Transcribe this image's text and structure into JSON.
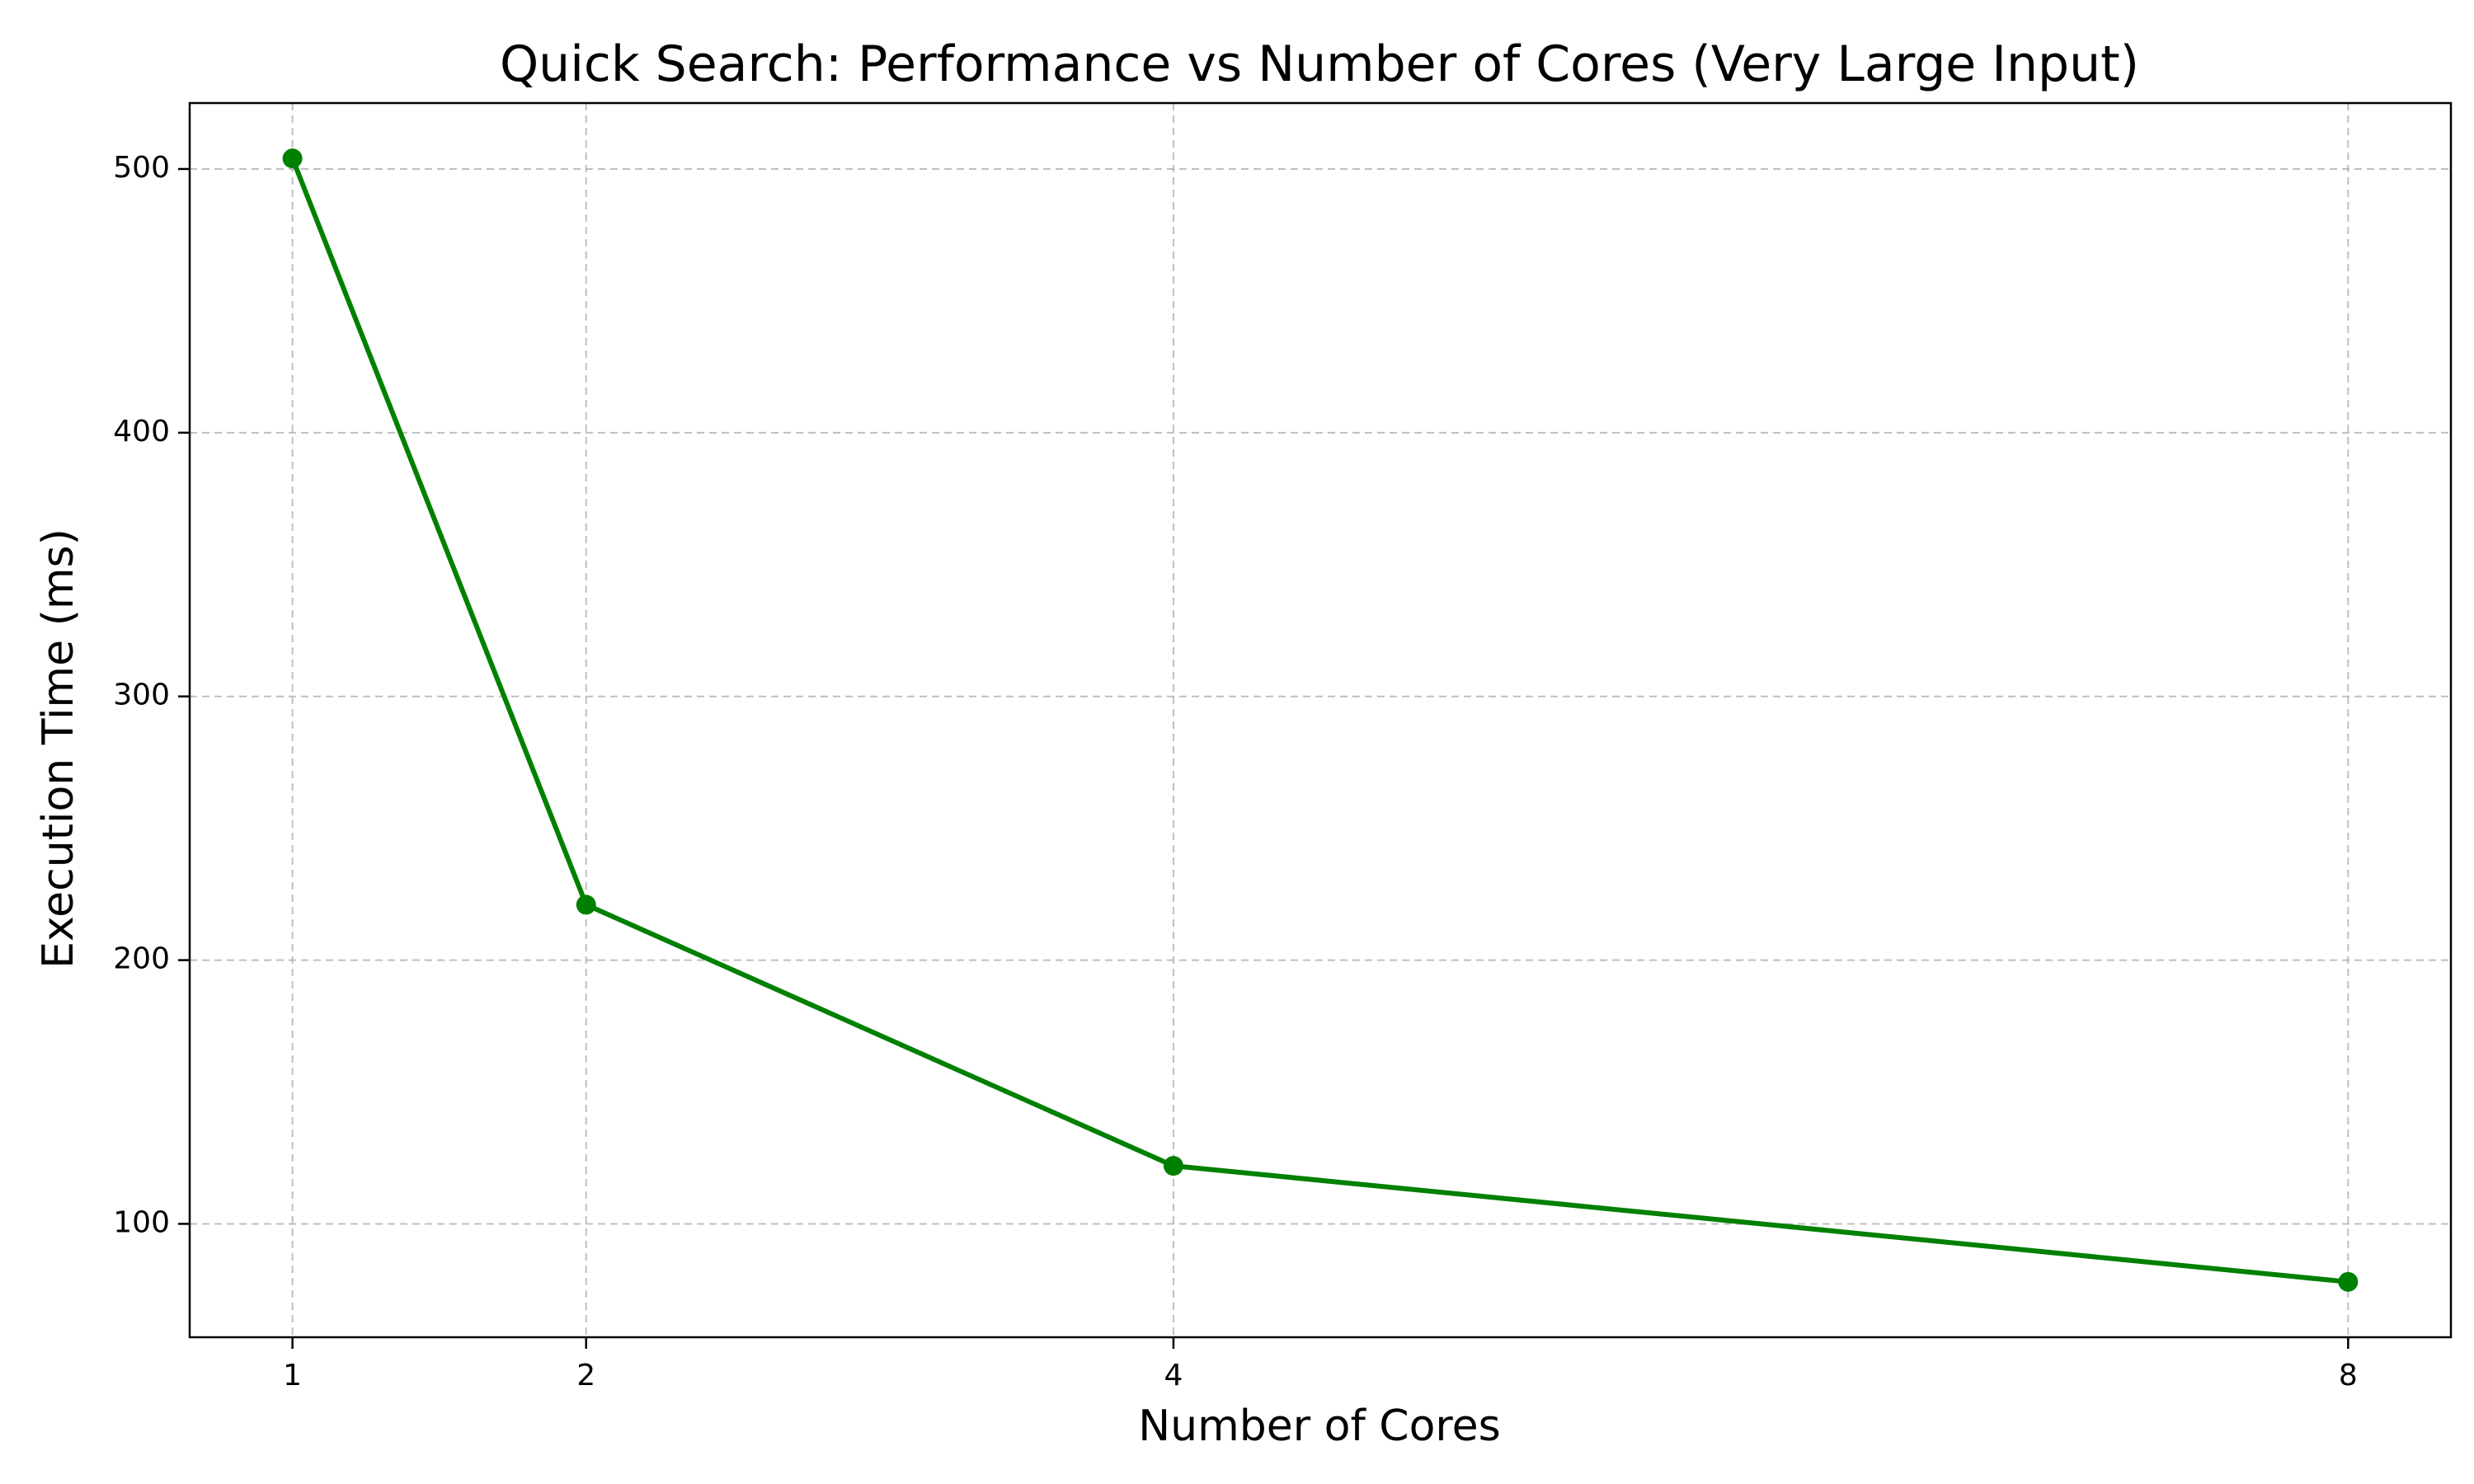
{
  "chart_data": {
    "type": "line",
    "title": "Quick Search: Performance vs Number of Cores (Very Large Input)",
    "xlabel": "Number of Cores",
    "ylabel": "Execution Time (ms)",
    "x": [
      1,
      2,
      4,
      8
    ],
    "series": [
      {
        "values": [
          504,
          221,
          122,
          78
        ],
        "color": "#008000",
        "marker": "circle"
      }
    ],
    "xticks": [
      1,
      2,
      4,
      8
    ],
    "xtick_labels": [
      "1",
      "2",
      "4",
      "8"
    ],
    "yticks": [
      100,
      200,
      300,
      400,
      500
    ],
    "ytick_labels": [
      "100",
      "200",
      "300",
      "400",
      "500"
    ],
    "xlim": [
      0.65,
      8.35
    ],
    "ylim": [
      57,
      525
    ],
    "grid": true,
    "grid_style": "dashed",
    "legend": false
  }
}
